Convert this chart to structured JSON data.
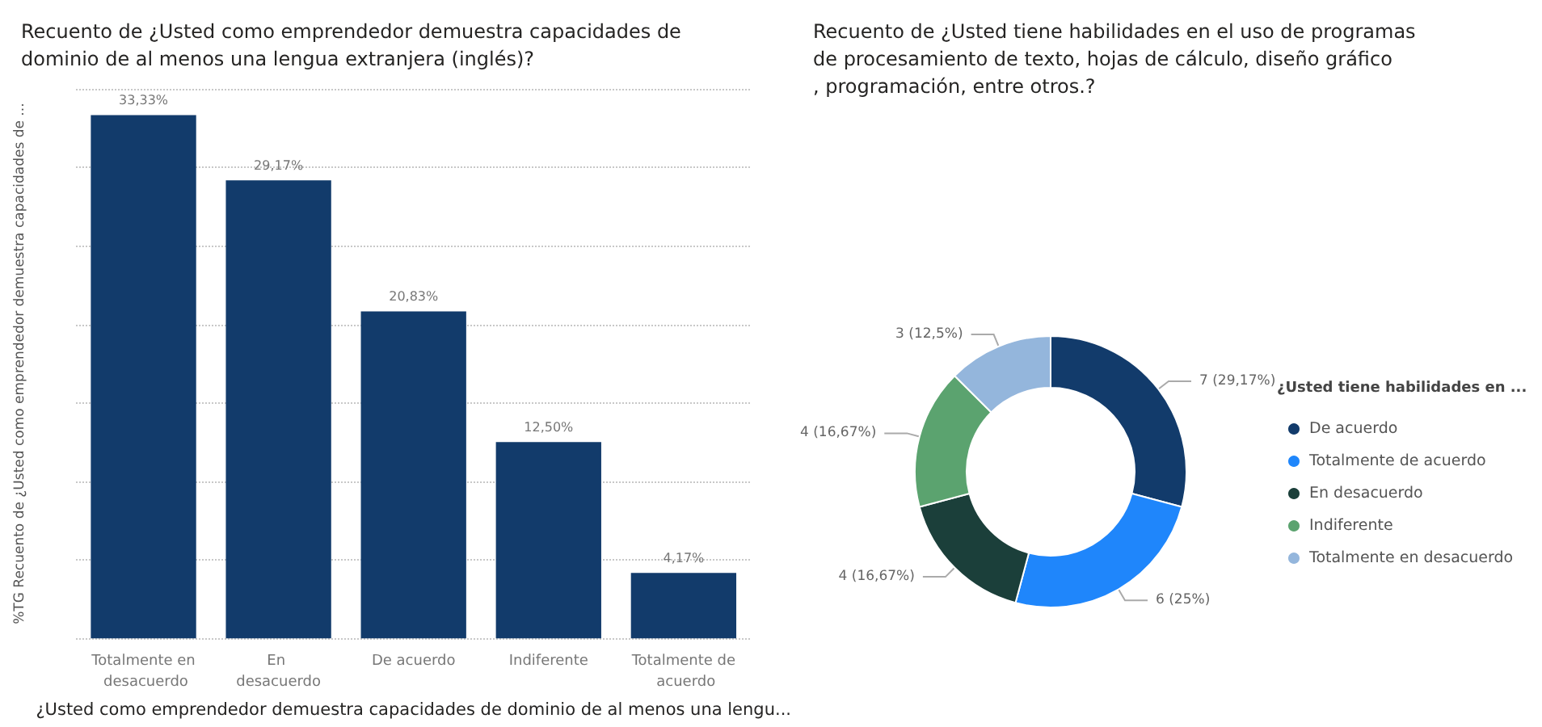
{
  "chart_data": [
    {
      "type": "bar",
      "title": "Recuento de ¿Usted como emprendedor demuestra capacidades de dominio de al menos una lengua extranjera (inglés)?",
      "xlabel": "¿Usted como emprendedor demuestra capacidades de dominio de al menos una lengu...",
      "ylabel": "%TG Recuento de ¿Usted como emprendedor demuestra capacidades de ...",
      "categories": [
        "Totalmente en desacuerdo",
        "En desacuerdo",
        "De acuerdo",
        "Indiferente",
        "Totalmente de acuerdo"
      ],
      "values": [
        33.33,
        29.17,
        20.83,
        12.5,
        4.17
      ],
      "value_labels": [
        "33,33%",
        "29,17%",
        "20,83%",
        "12,50%",
        "4,17%"
      ],
      "color": "#123b6b",
      "ylim": [
        0,
        35
      ],
      "yticks": [
        {
          "value": 0,
          "label": null
        },
        {
          "value": 5,
          "label": null
        },
        {
          "value": 10,
          "label": null
        },
        {
          "value": 15,
          "label": null
        },
        {
          "value": 20,
          "label": null
        },
        {
          "value": 25,
          "label": null
        },
        {
          "value": 30,
          "label": null
        },
        {
          "value": 35,
          "label": null
        }
      ],
      "tick_labels": "x",
      "grid": "y",
      "legend": false
    },
    {
      "type": "donut",
      "title": "Recuento de ¿Usted tiene habilidades en el uso de programas de procesamiento de texto, hojas de cálculo, diseño gráfico, programación, entre otros.?",
      "legend_title": "¿Usted tiene habilidades en ...",
      "categories": [
        "De acuerdo",
        "Totalmente de acuerdo",
        "En desacuerdo",
        "Indiferente",
        "Totalmente en desacuerdo"
      ],
      "values": [
        7,
        6,
        4,
        4,
        3
      ],
      "value_labels": [
        "7 (29,17%)",
        "6 (25%)",
        "4 (16,67%)",
        "4 (16,67%)",
        "3 (12,5%)"
      ],
      "colors": [
        "#123b6b",
        "#1f86fb",
        "#1b3f3a",
        "#5ba36f",
        "#94b6dc"
      ],
      "legend": "right"
    }
  ]
}
